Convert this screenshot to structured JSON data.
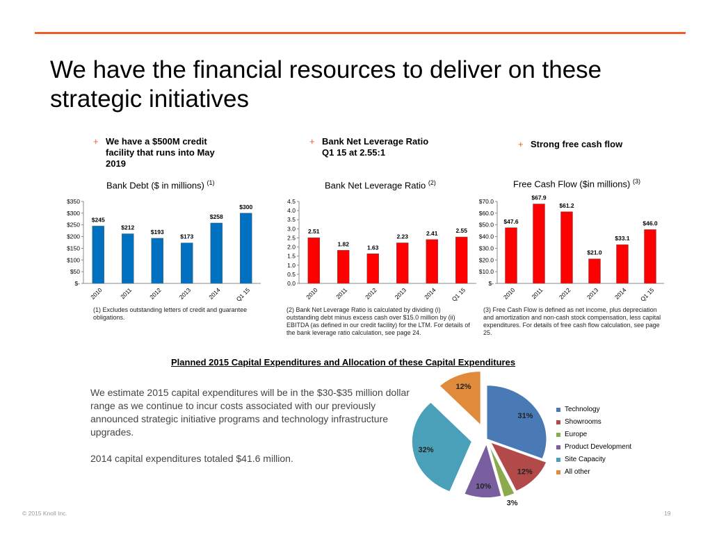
{
  "slide": {
    "title": "We have the financial resources to deliver on these strategic initiatives",
    "copyright": "© 2015 Knoll Inc.",
    "page_number": "19"
  },
  "bullets": [
    {
      "marker": "+",
      "text": "We have a $500M credit facility that runs into May 2019"
    },
    {
      "marker": "+",
      "text": "Bank Net Leverage Ratio Q1 15 at 2.55:1"
    },
    {
      "marker": "+",
      "text": "Strong free cash flow"
    }
  ],
  "footnotes": [
    "(1) Excludes outstanding letters of credit and guarantee obligations.",
    "(2) Bank Net Leverage Ratio is calculated by dividing (i) outstanding debt minus excess cash over $15.0 million by (ii) EBITDA (as defined in our credit facility) for the LTM. For details of the bank leverage ratio calculation, see page 24.",
    "(3) Free Cash Flow is defined as net income, plus depreciation and amortization and non-cash stock compensation, less capital expenditures. For details of  free cash flow calculation, see page 25."
  ],
  "capex": {
    "title": "Planned 2015 Capital Expenditures and Allocation of these Capital Expenditures",
    "paragraph1": "We estimate 2015 capital expenditures will be in the $30-$35 million dollar range as we continue to incur costs associated with our previously announced strategic initiative programs and technology infrastructure upgrades.",
    "paragraph2": "2014 capital expenditures totaled $41.6 million."
  },
  "chart_data": [
    {
      "type": "bar",
      "title": "Bank Debt ($ in millions)",
      "title_note": "(1)",
      "categories": [
        "2010",
        "2011",
        "2012",
        "2013",
        "2014",
        "Q1 15"
      ],
      "values": [
        245,
        212,
        193,
        173,
        258,
        300
      ],
      "data_labels": [
        "$245",
        "$212",
        "$193",
        "$173",
        "$258",
        "$300"
      ],
      "y_ticks": [
        "$-",
        "$50",
        "$100",
        "$150",
        "$200",
        "$250",
        "$300",
        "$350"
      ],
      "ylim": [
        0,
        350
      ],
      "color": "#0070c0"
    },
    {
      "type": "bar",
      "title": "Bank Net Leverage Ratio",
      "title_note": "(2)",
      "categories": [
        "2010",
        "2011",
        "2012",
        "2013",
        "2014",
        "Q1 15"
      ],
      "values": [
        2.51,
        1.82,
        1.63,
        2.23,
        2.41,
        2.55
      ],
      "data_labels": [
        "2.51",
        "1.82",
        "1.63",
        "2.23",
        "2.41",
        "2.55"
      ],
      "y_ticks": [
        "0.0",
        "0.5",
        "1.0",
        "1.5",
        "2.0",
        "2.5",
        "3.0",
        "3.5",
        "4.0",
        "4.5"
      ],
      "ylim": [
        0,
        4.5
      ],
      "color": "#ff0000"
    },
    {
      "type": "bar",
      "title": "Free Cash Flow ($in millions)",
      "title_note": "(3)",
      "categories": [
        "2010",
        "2011",
        "2012",
        "2013",
        "2014",
        "Q1 15"
      ],
      "values": [
        47.6,
        67.9,
        61.2,
        21.0,
        33.1,
        46.0
      ],
      "data_labels": [
        "$47.6",
        "$67.9",
        "$61.2",
        "$21.0",
        "$33.1",
        "$46.0"
      ],
      "y_ticks": [
        "$-",
        "$10.0",
        "$20.0",
        "$30.0",
        "$40.0",
        "$50.0",
        "$60.0",
        "$70.0"
      ],
      "ylim": [
        0,
        70
      ],
      "color": "#ff0000"
    },
    {
      "type": "pie",
      "title": "Planned 2015 Capital Expenditures and Allocation of these Capital Expenditures",
      "categories": [
        "Technology",
        "Showrooms",
        "Europe",
        "Product Development",
        "Site Capacity",
        "All other"
      ],
      "values": [
        31,
        12,
        3,
        10,
        32,
        12
      ],
      "data_labels": [
        "31%",
        "12%",
        "3%",
        "10%",
        "32%",
        "12%"
      ],
      "colors": [
        "#4a7ab5",
        "#b14a48",
        "#8caa4c",
        "#7a5fa0",
        "#4aa0b8",
        "#e08a3c"
      ],
      "legend_position": "right"
    }
  ]
}
